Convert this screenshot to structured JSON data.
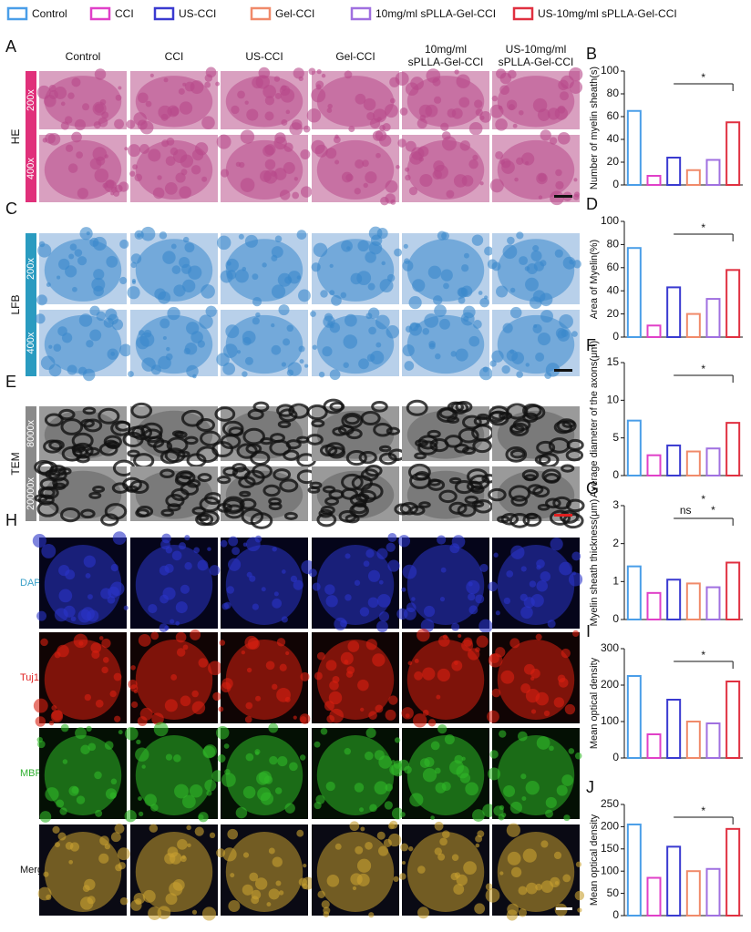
{
  "legend": [
    {
      "name": "Control",
      "color": "#4a9ee8"
    },
    {
      "name": "CCI",
      "color": "#e040c8"
    },
    {
      "name": "US-CCI",
      "color": "#3a3ad0"
    },
    {
      "name": "Gel-CCI",
      "color": "#f08a6a"
    },
    {
      "name": "10mg/ml sPLLA-Gel-CCI",
      "color": "#a070e0"
    },
    {
      "name": "US-10mg/ml sPLLA-Gel-CCI",
      "color": "#e03040"
    }
  ],
  "image_panels": {
    "columns": [
      [
        "Control"
      ],
      [
        "CCI"
      ],
      [
        "US-CCI"
      ],
      [
        "Gel-CCI"
      ],
      [
        "10mg/ml",
        "sPLLA-Gel-CCI"
      ],
      [
        "US-10mg/ml",
        "sPLLA-Gel-CCI"
      ]
    ],
    "rows": [
      {
        "letter": "A",
        "stain": "HE",
        "magnifications": [
          "200x",
          "400x"
        ]
      },
      {
        "letter": "C",
        "stain": "LFB",
        "magnifications": [
          "200x",
          "400x"
        ]
      },
      {
        "letter": "E",
        "stain": "TEM",
        "magnifications": [
          "8000x",
          "20000x"
        ]
      },
      {
        "letter": "H",
        "channels": [
          "DAPI",
          "Tuj1",
          "MBP",
          "Merge"
        ]
      }
    ]
  },
  "chart_data": [
    {
      "type": "bar",
      "panel": "B",
      "y_label": "Number of myelin sheath(s)",
      "categories": [
        null,
        null,
        null,
        null,
        null,
        null
      ],
      "values": [
        65,
        8,
        24,
        13,
        22,
        55
      ],
      "colors": [
        "#4a9ee8",
        "#e040c8",
        "#3a3ad0",
        "#f08a6a",
        "#a070e0",
        "#e03040"
      ],
      "ylim": [
        0,
        100
      ],
      "yticks": [
        0,
        20,
        40,
        60,
        80,
        100
      ],
      "annotations": [
        "*"
      ]
    },
    {
      "type": "bar",
      "panel": "D",
      "y_label": "Area of Myelin(%)",
      "categories": [
        null,
        null,
        null,
        null,
        null,
        null
      ],
      "values": [
        77,
        10,
        43,
        20,
        33,
        58
      ],
      "colors": [
        "#4a9ee8",
        "#e040c8",
        "#3a3ad0",
        "#f08a6a",
        "#a070e0",
        "#e03040"
      ],
      "ylim": [
        0,
        100
      ],
      "yticks": [
        0,
        20,
        40,
        60,
        80,
        100
      ],
      "annotations": [
        "*"
      ]
    },
    {
      "type": "bar",
      "panel": "F",
      "y_label": "Average diameter of the axons(μm)",
      "categories": [
        null,
        null,
        null,
        null,
        null,
        null
      ],
      "values": [
        7.3,
        2.7,
        4.0,
        3.2,
        3.6,
        7.0
      ],
      "colors": [
        "#4a9ee8",
        "#e040c8",
        "#3a3ad0",
        "#f08a6a",
        "#a070e0",
        "#e03040"
      ],
      "ylim": [
        0,
        15
      ],
      "yticks": [
        0,
        5,
        10,
        15
      ],
      "annotations": [
        "*"
      ]
    },
    {
      "type": "bar",
      "panel": "G",
      "y_label": "Myelin sheath thickness(μm)",
      "categories": [
        null,
        null,
        null,
        null,
        null,
        null
      ],
      "values": [
        1.4,
        0.7,
        1.05,
        0.95,
        0.85,
        1.5
      ],
      "colors": [
        "#4a9ee8",
        "#e040c8",
        "#3a3ad0",
        "#f08a6a",
        "#a070e0",
        "#e03040"
      ],
      "ylim": [
        0,
        3
      ],
      "yticks": [
        0,
        1,
        2,
        3
      ],
      "annotations": [
        "*",
        "ns",
        "*"
      ]
    },
    {
      "type": "bar",
      "panel": "I",
      "y_label": "Mean optical density",
      "categories": [
        null,
        null,
        null,
        null,
        null,
        null
      ],
      "values": [
        225,
        65,
        160,
        100,
        95,
        210
      ],
      "colors": [
        "#4a9ee8",
        "#e040c8",
        "#3a3ad0",
        "#f08a6a",
        "#a070e0",
        "#e03040"
      ],
      "ylim": [
        0,
        300
      ],
      "yticks": [
        0,
        100,
        200,
        300
      ],
      "annotations": [
        "*"
      ]
    },
    {
      "type": "bar",
      "panel": "J",
      "y_label": "Mean optical density",
      "categories": [
        null,
        null,
        null,
        null,
        null,
        null
      ],
      "values": [
        205,
        85,
        155,
        100,
        105,
        195
      ],
      "colors": [
        "#4a9ee8",
        "#e040c8",
        "#3a3ad0",
        "#f08a6a",
        "#a070e0",
        "#e03040"
      ],
      "ylim": [
        0,
        250
      ],
      "yticks": [
        0,
        50,
        100,
        150,
        200,
        250
      ],
      "annotations": [
        "*"
      ]
    }
  ]
}
